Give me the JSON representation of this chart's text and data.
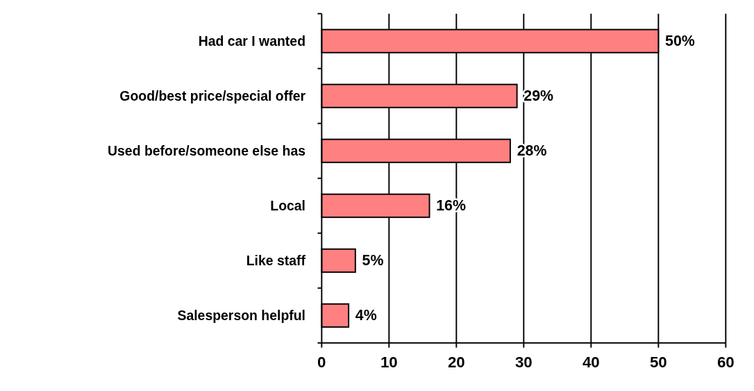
{
  "chart_data": {
    "type": "bar",
    "orientation": "horizontal",
    "categories": [
      "Had car I wanted",
      "Good/best price/special offer",
      "Used before/someone else has",
      "Local",
      "Like staff",
      "Salesperson helpful"
    ],
    "values": [
      50,
      29,
      28,
      16,
      5,
      4
    ],
    "value_labels": [
      "50%",
      "29%",
      "28%",
      "16%",
      "5%",
      "4%"
    ],
    "color": "#ff8080",
    "xlim": [
      0,
      60
    ],
    "xticks": [
      0,
      10,
      20,
      30,
      40,
      50,
      60
    ],
    "grid": "x"
  }
}
